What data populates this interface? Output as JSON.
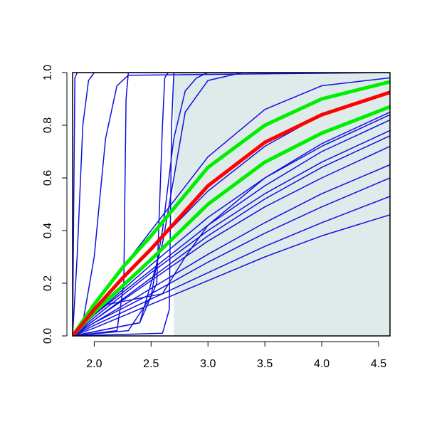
{
  "chart_data": {
    "type": "line",
    "xlim": [
      1.81,
      4.6
    ],
    "ylim": [
      0,
      1.0
    ],
    "xticks": [
      {
        "value": 2,
        "label": "2.0"
      },
      {
        "value": 2.5,
        "label": "2.5"
      },
      {
        "value": 3,
        "label": "3.0"
      },
      {
        "value": 3.5,
        "label": "3.5"
      },
      {
        "value": 4,
        "label": "4.0"
      },
      {
        "value": 4.5,
        "label": "4.5"
      }
    ],
    "yticks": [
      {
        "value": 0,
        "label": "0.0"
      },
      {
        "value": 0.2,
        "label": "0.2"
      },
      {
        "value": 0.4,
        "label": "0.4"
      },
      {
        "value": 0.6,
        "label": "0.6"
      },
      {
        "value": 0.8,
        "label": "0.8"
      },
      {
        "value": 1,
        "label": "1.0"
      }
    ],
    "shade": {
      "xlim": [
        2.7,
        4.6
      ],
      "color": "#dfebeb"
    },
    "series": [
      {
        "color": "#1010e0",
        "line_width": 1.5,
        "x": [
          1.81,
          1.82,
          1.83,
          1.85,
          4.6
        ],
        "values": [
          0,
          0.5,
          0.98,
          1,
          1
        ]
      },
      {
        "color": "#1010e0",
        "line_width": 1.5,
        "x": [
          1.81,
          1.85,
          1.9,
          1.95,
          2.0,
          4.6
        ],
        "values": [
          0,
          0.3,
          0.8,
          0.97,
          1,
          1
        ]
      },
      {
        "color": "#1010e0",
        "line_width": 1.5,
        "x": [
          1.81,
          1.9,
          2.0,
          2.1,
          2.2,
          2.3,
          4.6
        ],
        "values": [
          0,
          0.05,
          0.3,
          0.75,
          0.95,
          0.99,
          1
        ]
      },
      {
        "color": "#1010e0",
        "line_width": 1.5,
        "x": [
          1.81,
          2.2,
          2.26,
          2.28,
          2.3,
          4.6
        ],
        "values": [
          0,
          0.02,
          0.2,
          0.9,
          1,
          1
        ]
      },
      {
        "color": "#1010e0",
        "line_width": 1.5,
        "x": [
          1.81,
          2.4,
          2.55,
          2.6,
          2.62,
          2.65,
          4.6
        ],
        "values": [
          0,
          0.05,
          0.2,
          0.8,
          0.98,
          1,
          1
        ]
      },
      {
        "color": "#1010e0",
        "line_width": 1.5,
        "x": [
          1.81,
          2.6,
          2.66,
          2.68,
          2.7,
          4.6
        ],
        "values": [
          0,
          0.01,
          0.1,
          0.8,
          1,
          1
        ]
      },
      {
        "color": "#1010e0",
        "line_width": 1.5,
        "x": [
          1.81,
          2.3,
          2.5,
          2.6,
          2.7,
          2.8,
          2.9,
          3.0,
          4.6
        ],
        "values": [
          0,
          0.02,
          0.15,
          0.4,
          0.75,
          0.93,
          0.98,
          1,
          1
        ]
      },
      {
        "color": "#1010e0",
        "line_width": 1.5,
        "x": [
          1.81,
          2.4,
          2.6,
          2.7,
          2.8,
          3.0,
          3.3,
          4.6
        ],
        "values": [
          0,
          0.05,
          0.35,
          0.6,
          0.85,
          0.97,
          1,
          1
        ]
      },
      {
        "color": "#1010e0",
        "line_width": 1.5,
        "x": [
          1.81,
          2.0,
          2.5,
          3.0,
          3.5,
          4.0,
          4.6
        ],
        "values": [
          0,
          0.12,
          0.4,
          0.68,
          0.86,
          0.95,
          0.98
        ]
      },
      {
        "color": "#1010e0",
        "line_width": 1.5,
        "x": [
          1.81,
          2.0,
          2.5,
          3.0,
          3.5,
          4.0,
          4.6
        ],
        "values": [
          0,
          0.08,
          0.27,
          0.45,
          0.6,
          0.72,
          0.84
        ]
      },
      {
        "color": "#1010e0",
        "line_width": 1.5,
        "x": [
          1.81,
          2.0,
          2.5,
          3.0,
          3.5,
          4.0,
          4.6
        ],
        "values": [
          0,
          0.07,
          0.24,
          0.4,
          0.54,
          0.66,
          0.78
        ]
      },
      {
        "color": "#1010e0",
        "line_width": 1.5,
        "x": [
          1.81,
          2.0,
          2.5,
          3.0,
          3.5,
          4.0,
          4.6
        ],
        "values": [
          0,
          0.06,
          0.21,
          0.36,
          0.49,
          0.6,
          0.72
        ]
      },
      {
        "color": "#1010e0",
        "line_width": 1.5,
        "x": [
          1.81,
          2.0,
          2.5,
          3.0,
          3.5,
          4.0,
          4.6
        ],
        "values": [
          0,
          0.05,
          0.18,
          0.31,
          0.43,
          0.54,
          0.65
        ]
      },
      {
        "color": "#1010e0",
        "line_width": 1.5,
        "x": [
          1.81,
          2.0,
          2.5,
          3.0,
          3.5,
          4.0,
          4.6
        ],
        "values": [
          0,
          0.05,
          0.16,
          0.28,
          0.39,
          0.49,
          0.6
        ]
      },
      {
        "color": "#1010e0",
        "line_width": 1.5,
        "x": [
          1.81,
          2.0,
          2.5,
          3.0,
          3.5,
          4.0,
          4.6
        ],
        "values": [
          0,
          0.04,
          0.14,
          0.24,
          0.34,
          0.43,
          0.53
        ]
      },
      {
        "color": "#1010e0",
        "line_width": 1.5,
        "x": [
          1.81,
          2.0,
          2.5,
          3.0,
          3.5,
          4.0,
          4.6
        ],
        "values": [
          0,
          0.03,
          0.12,
          0.21,
          0.3,
          0.38,
          0.46
        ]
      },
      {
        "color": "#1010e0",
        "line_width": 1.5,
        "x": [
          1.81,
          2.0,
          2.5,
          3.0,
          3.5,
          4.0,
          4.6
        ],
        "values": [
          0,
          0.08,
          0.25,
          0.42,
          0.57,
          0.7,
          0.82
        ]
      },
      {
        "color": "#1010e0",
        "line_width": 1.5,
        "x": [
          1.81,
          2.0,
          2.5,
          3.0,
          3.5,
          4.0,
          4.6
        ],
        "values": [
          0,
          0.06,
          0.22,
          0.38,
          0.52,
          0.64,
          0.76
        ]
      },
      {
        "color": "#1010e0",
        "line_width": 1.5,
        "x": [
          1.81,
          2.0,
          2.6,
          2.8,
          3.0,
          3.5,
          4.0,
          4.6
        ],
        "values": [
          0,
          0.11,
          0.16,
          0.3,
          0.42,
          0.6,
          0.73,
          0.85
        ]
      },
      {
        "color": "#1010e0",
        "line_width": 1.5,
        "x": [
          1.81,
          2.0,
          2.5,
          3.0,
          3.5,
          4.0,
          4.6
        ],
        "values": [
          0,
          0.1,
          0.33,
          0.55,
          0.72,
          0.84,
          0.93
        ]
      },
      {
        "color": "#00ee00",
        "line_width": 5,
        "x": [
          1.81,
          2.0,
          2.25,
          2.5,
          3.0,
          3.5,
          4.0,
          4.6
        ],
        "values": [
          0,
          0.12,
          0.26,
          0.38,
          0.64,
          0.8,
          0.9,
          0.965
        ]
      },
      {
        "color": "#00ee00",
        "line_width": 5,
        "x": [
          1.81,
          2.0,
          2.25,
          2.5,
          3.0,
          3.5,
          4.0,
          4.6
        ],
        "values": [
          0,
          0.09,
          0.19,
          0.29,
          0.5,
          0.66,
          0.77,
          0.87
        ]
      },
      {
        "color": "#ff0000",
        "line_width": 5,
        "x": [
          1.81,
          2.0,
          2.25,
          2.5,
          3.0,
          3.5,
          4.0,
          4.6
        ],
        "values": [
          0,
          0.1,
          0.22,
          0.33,
          0.57,
          0.735,
          0.84,
          0.925
        ]
      }
    ]
  }
}
